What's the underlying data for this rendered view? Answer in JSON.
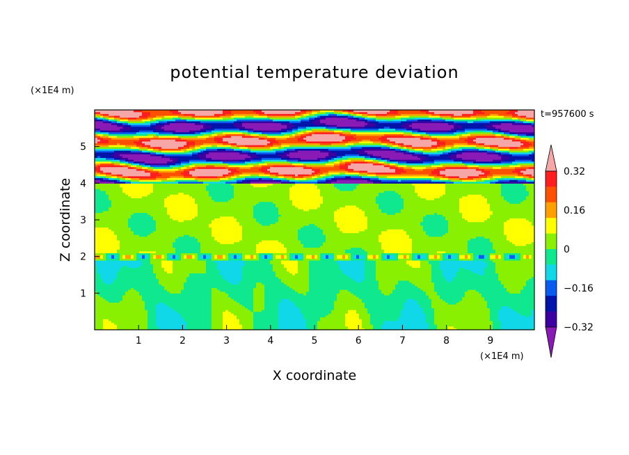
{
  "chart_data": {
    "type": "heatmap",
    "title": "potential temperature deviation",
    "xlabel": "X coordinate",
    "ylabel": "Z coordinate",
    "x_unit": "(×1E4 m)",
    "y_unit": "(×1E4 m)",
    "time_label": "t=957600 s",
    "xlim": [
      0,
      10
    ],
    "ylim": [
      0,
      6
    ],
    "x_ticks": [
      1,
      2,
      3,
      4,
      5,
      6,
      7,
      8,
      9
    ],
    "y_ticks": [
      1,
      2,
      3,
      4,
      5
    ],
    "colorbar": {
      "levels": [
        -0.4,
        -0.32,
        -0.24,
        -0.16,
        -0.08,
        0,
        0.08,
        0.16,
        0.24,
        0.32,
        0.4
      ],
      "tick_labels": [
        "0.32",
        "0.16",
        "0",
        "−0.16",
        "−0.32"
      ],
      "tick_values": [
        0.32,
        0.16,
        0,
        -0.16,
        -0.32
      ],
      "colors": [
        "#8a1ab5",
        "#3c00a0",
        "#0014aa",
        "#0a5cf0",
        "#10d8e8",
        "#10e890",
        "#88f000",
        "#ffff00",
        "#ffa000",
        "#ff5000",
        "#ff1e1e",
        "#f6a6a6"
      ]
    }
  }
}
